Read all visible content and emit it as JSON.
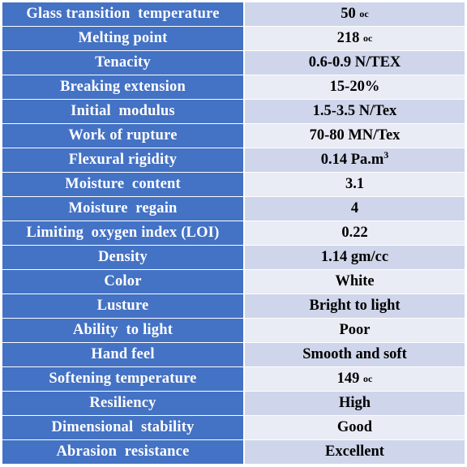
{
  "colors": {
    "header_column_bg": "#4472c4",
    "value_odd_bg": "#cfd5ea",
    "value_even_bg": "#e9ebf5",
    "label_text": "#ffffff",
    "value_text": "#000000"
  },
  "rows": [
    {
      "label": "Glass transition  temperature",
      "value": "50",
      "unit": "oc"
    },
    {
      "label": "Melting point",
      "value": "218",
      "unit": "oc"
    },
    {
      "label": "Tenacity",
      "value": "0.6-0.9 N/TEX"
    },
    {
      "label": "Breaking extension",
      "value": "15-20%"
    },
    {
      "label": "Initial  modulus",
      "value": "1.5-3.5 N/Tex"
    },
    {
      "label": "Work of rupture",
      "value": "70-80 MN/Tex"
    },
    {
      "label": "Flexural rigidity",
      "value": "0.14 Pa.m",
      "sup": "3"
    },
    {
      "label": "Moisture  content",
      "value": "3.1"
    },
    {
      "label": "Moisture  regain",
      "value": "4"
    },
    {
      "label": "Limiting  oxygen index (LOI)",
      "value": "0.22"
    },
    {
      "label": "Density",
      "value": "1.14 gm/cc"
    },
    {
      "label": "Color",
      "value": "White"
    },
    {
      "label": "Lusture",
      "value": "Bright to light"
    },
    {
      "label": "Ability  to light",
      "value": "Poor"
    },
    {
      "label": "Hand feel",
      "value": "Smooth and soft"
    },
    {
      "label": "Softening temperature",
      "value": "149",
      "unit": "oc"
    },
    {
      "label": "Resiliency",
      "value": "High"
    },
    {
      "label": "Dimensional  stability",
      "value": "Good"
    },
    {
      "label": "Abrasion  resistance",
      "value": "Excellent"
    }
  ]
}
